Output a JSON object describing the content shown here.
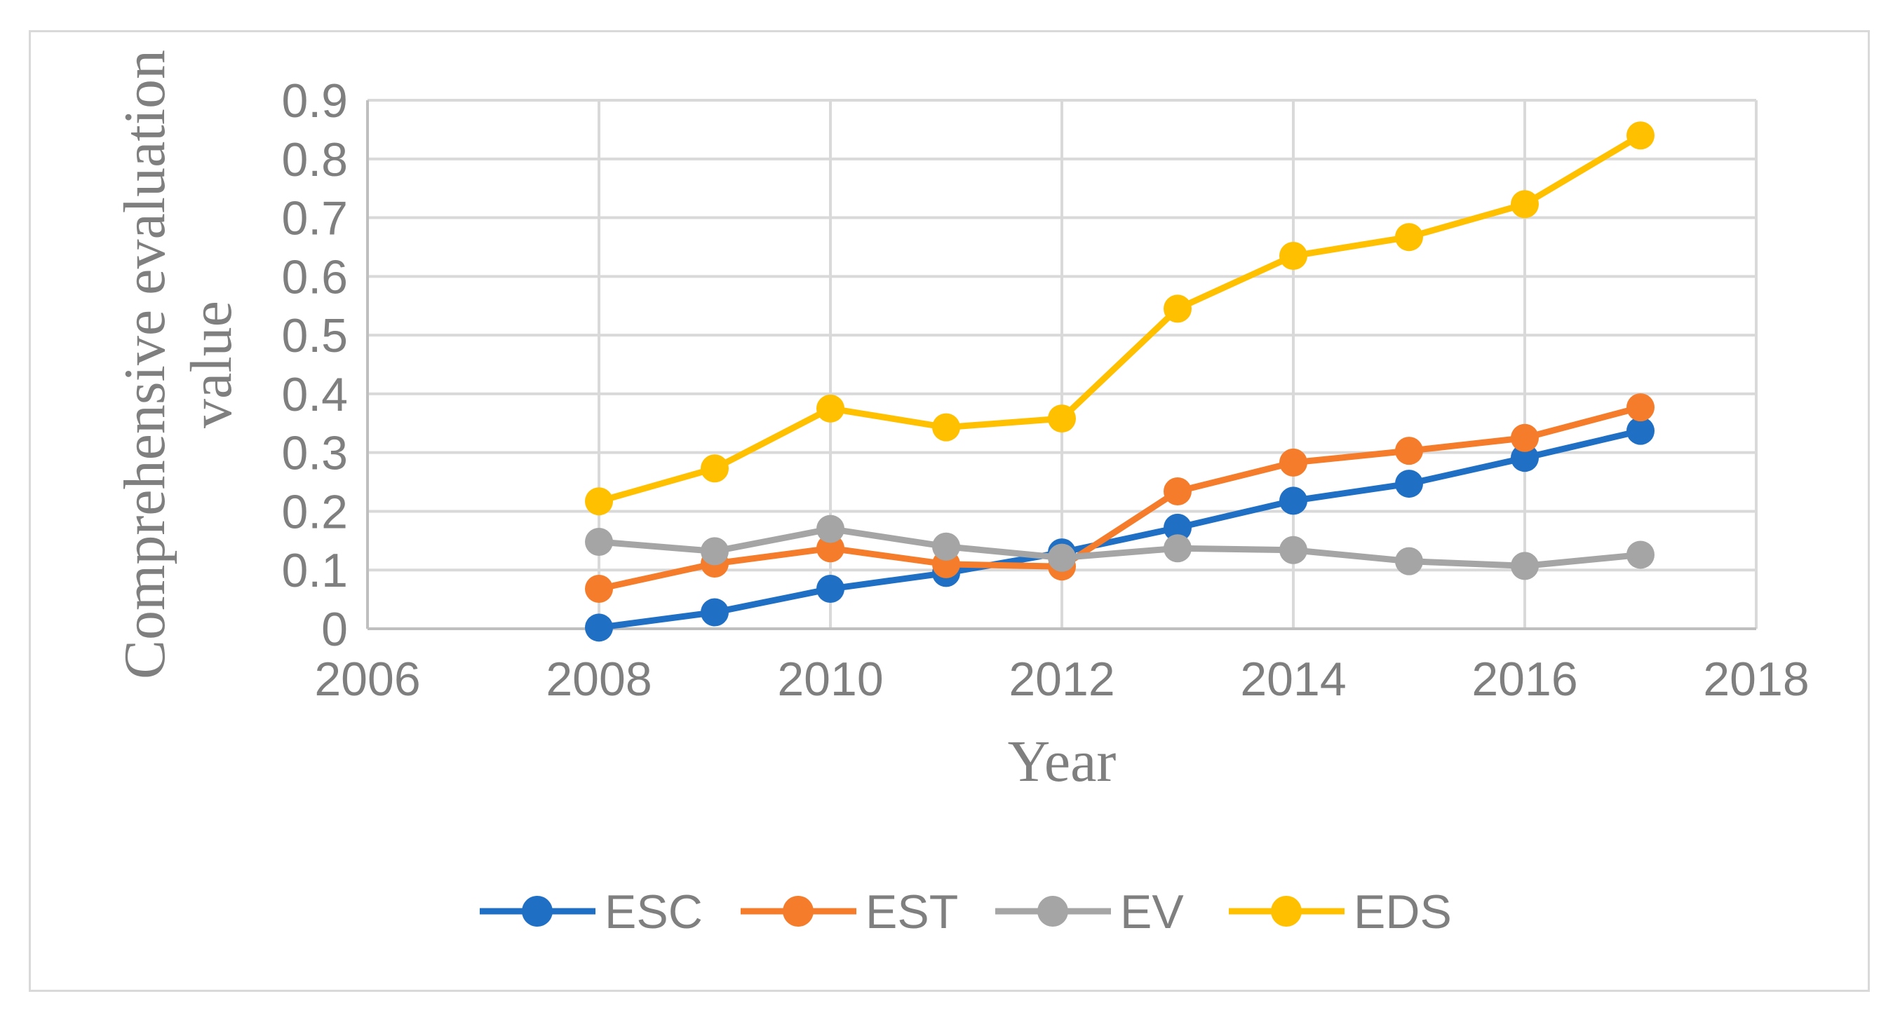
{
  "chart_data": {
    "type": "line",
    "title": "",
    "xlabel": "Year",
    "ylabel_lines": [
      "Comprehensive evaluation",
      "value"
    ],
    "xlim": [
      2006,
      2018
    ],
    "ylim": [
      0,
      0.9
    ],
    "xticks": [
      2006,
      2008,
      2010,
      2012,
      2014,
      2016,
      2018
    ],
    "yticks": [
      "0",
      "0.1",
      "0.2",
      "0.3",
      "0.4",
      "0.5",
      "0.6",
      "0.7",
      "0.8",
      "0.9"
    ],
    "grid": true,
    "legend_position": "bottom",
    "x": [
      2008,
      2009,
      2010,
      2011,
      2012,
      2013,
      2014,
      2015,
      2016,
      2017
    ],
    "series": [
      {
        "name": "ESC",
        "color": "#1f6fc5",
        "values": [
          0.002,
          0.028,
          0.068,
          0.095,
          0.13,
          0.172,
          0.218,
          0.247,
          0.291,
          0.337
        ]
      },
      {
        "name": "EST",
        "color": "#f47c2a",
        "values": [
          0.068,
          0.111,
          0.137,
          0.11,
          0.106,
          0.234,
          0.283,
          0.303,
          0.325,
          0.377
        ]
      },
      {
        "name": "EV",
        "color": "#a5a5a5",
        "values": [
          0.148,
          0.132,
          0.17,
          0.14,
          0.121,
          0.137,
          0.134,
          0.115,
          0.107,
          0.126
        ]
      },
      {
        "name": "EDS",
        "color": "#ffc000",
        "values": [
          0.217,
          0.273,
          0.375,
          0.343,
          0.358,
          0.545,
          0.635,
          0.667,
          0.723,
          0.84
        ]
      }
    ]
  }
}
